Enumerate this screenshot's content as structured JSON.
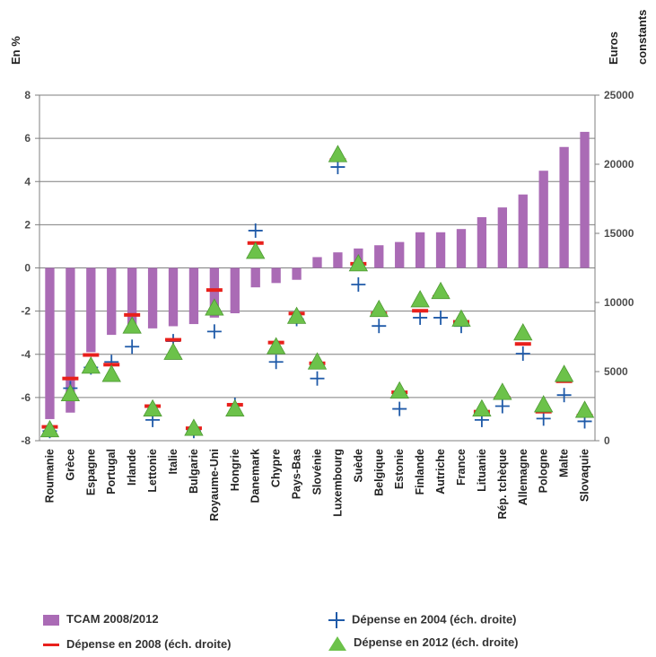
{
  "chart_data": {
    "type": "bar",
    "left_axis_label": "En %",
    "right_axis_label_lines": [
      "Euros",
      "constants"
    ],
    "left_ylim": [
      -8,
      8
    ],
    "left_ticks": [
      -8,
      -6,
      -4,
      -2,
      0,
      2,
      4,
      6,
      8
    ],
    "right_ylim": [
      0,
      25000
    ],
    "right_ticks": [
      0,
      5000,
      10000,
      15000,
      20000,
      25000
    ],
    "grid": true,
    "categories": [
      "Roumanie",
      "Grèce",
      "Espagne",
      "Portugal",
      "Irlande",
      "Lettonie",
      "Italie",
      "Bulgarie",
      "Royaume-Uni",
      "Hongrie",
      "Danemark",
      "Chypre",
      "Pays-Bas",
      "Slovénie",
      "Luxembourg",
      "Suède",
      "Belgique",
      "Estonie",
      "Finlande",
      "Autriche",
      "France",
      "Lituanie",
      "Rép. tchèque",
      "Allemagne",
      "Pologne",
      "Malte",
      "Slovaquie"
    ],
    "series": [
      {
        "name": "TCAM 2008/2012",
        "kind": "bar",
        "axis": "left",
        "color": "#aa6bb5",
        "values": [
          -7.0,
          -6.7,
          -3.9,
          -3.1,
          -3.0,
          -2.8,
          -2.7,
          -2.6,
          -2.3,
          -2.1,
          -0.9,
          -0.7,
          -0.55,
          0.5,
          0.72,
          0.9,
          1.05,
          1.2,
          1.65,
          1.65,
          1.8,
          2.35,
          2.8,
          3.4,
          4.5,
          5.6,
          6.3
        ]
      },
      {
        "name": "Dépense en 2004 (éch. droite)",
        "kind": "plus",
        "axis": "right",
        "color": "#1f5aa8",
        "values": [
          700,
          3800,
          5300,
          5700,
          6800,
          1500,
          7200,
          700,
          7900,
          2600,
          15200,
          5700,
          8800,
          4500,
          19800,
          11300,
          8300,
          2300,
          8900,
          8900,
          8300,
          1500,
          2500,
          6300,
          1600,
          3300,
          1400
        ]
      },
      {
        "name": "Dépense en 2008 (éch. droite)",
        "kind": "dash",
        "axis": "right",
        "color": "#e8201c",
        "values": [
          1000,
          4500,
          6200,
          5500,
          9100,
          2500,
          7300,
          900,
          10900,
          2600,
          14300,
          7100,
          9200,
          5600,
          20300,
          12800,
          9200,
          3500,
          9400,
          10400,
          8600,
          2100,
          3100,
          7000,
          2100,
          4300,
          1800
        ]
      },
      {
        "name": "Dépense en 2012 (éch. droite)",
        "kind": "triangle",
        "axis": "right",
        "color": "#6cc24a",
        "values": [
          800,
          3400,
          5400,
          4800,
          8300,
          2300,
          6400,
          900,
          9600,
          2300,
          13700,
          6800,
          9000,
          5700,
          20700,
          12800,
          9500,
          3600,
          10200,
          10800,
          8800,
          2300,
          3500,
          7800,
          2600,
          4800,
          2200
        ]
      }
    ]
  },
  "legend": {
    "tcam": "TCAM 2008/2012",
    "dep2004": "Dépense en 2004 (éch. droite)",
    "dep2008": "Dépense en 2008 (éch. droite)",
    "dep2012": "Dépense en 2012 (éch. droite)"
  }
}
